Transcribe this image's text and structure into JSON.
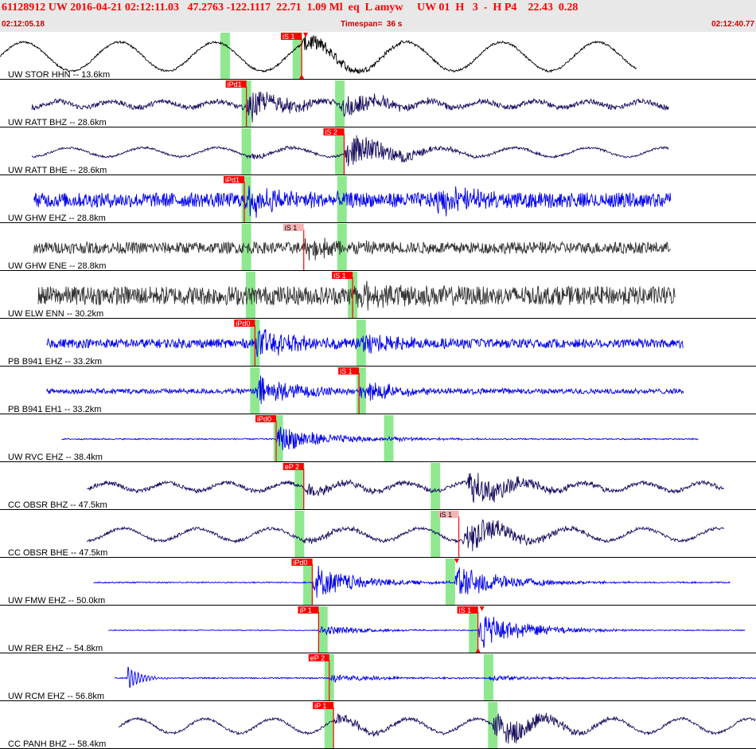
{
  "header": {
    "title": "61128912 UW 2016-04-21 02:12:11.03   47.2763 -122.1117  22.71  1.09 Ml  eq  L amyw     UW 01  H   3  -  H P4    22.43  0.28",
    "start_time": "02:12:05.18",
    "timespan": "Timespan=  36 s",
    "end_time": "02:12:40.77"
  },
  "colors": {
    "header_bg": "#e8e8e8",
    "header_text": "#ff0000",
    "pick_flag": "#ff0000",
    "pick_flag_light": "#f4b4b4",
    "predicted_band": "#8fe88f",
    "trace_blue": "#0000ee",
    "trace_navy": "#1a1060",
    "trace_gray": "#333333",
    "trace_black": "#000000"
  },
  "time_window": {
    "start": 0,
    "end": 35.59
  },
  "channels": [
    {
      "label": "UW STOR HHN -- 13.6km",
      "color": "#000000",
      "data_start": 0.0,
      "data_end": 30.0,
      "noise": 0.05,
      "long_amp": 0.7,
      "long_period": 4.5,
      "event": 14.2,
      "event_amp": 0.5,
      "event2": null,
      "event2_amp": 0,
      "bands": [
        10.6,
        14.0
      ],
      "picks": [
        {
          "label": "iS 1",
          "t": 14.2,
          "light": false,
          "line": true,
          "arrow": true
        }
      ]
    },
    {
      "label": "UW RATT BHZ -- 28.6km",
      "color": "#1a1060",
      "data_start": 1.5,
      "data_end": 31.5,
      "noise": 0.12,
      "long_amp": 0.15,
      "long_period": 2.5,
      "event": 11.6,
      "event_amp": 0.7,
      "event2": 16.0,
      "event2_amp": 0.6,
      "bands": [
        11.6,
        16.0
      ],
      "picks": [
        {
          "label": "iPd1",
          "t": 11.6,
          "light": false,
          "line": true
        }
      ]
    },
    {
      "label": "UW RATT BHE -- 28.6km",
      "color": "#1a1060",
      "data_start": 1.5,
      "data_end": 31.5,
      "noise": 0.05,
      "long_amp": 0.22,
      "long_period": 3.5,
      "event": 11.6,
      "event_amp": 0.15,
      "event2": 16.2,
      "event2_amp": 0.9,
      "bands": [
        11.6,
        16.0
      ],
      "picks": [
        {
          "label": "iS 2",
          "t": 16.2,
          "light": false,
          "line": true
        }
      ]
    },
    {
      "label": "UW GHW EHZ -- 28.8km",
      "color": "#0000ee",
      "data_start": 1.6,
      "data_end": 31.6,
      "noise": 0.35,
      "long_amp": 0.0,
      "long_period": 3.0,
      "event": 11.5,
      "event_amp": 0.7,
      "event2": 20.5,
      "event2_amp": 0.6,
      "bands": [
        11.6,
        16.1
      ],
      "picks": [
        {
          "label": "iPd1",
          "t": 11.5,
          "light": false,
          "line": true
        }
      ]
    },
    {
      "label": "UW GHW ENE -- 28.8km",
      "color": "#333333",
      "data_start": 1.6,
      "data_end": 31.6,
      "noise": 0.28,
      "long_amp": 0.0,
      "long_period": 3.0,
      "event": 14.3,
      "event_amp": 0.5,
      "event2": null,
      "event2_amp": 0,
      "bands": [
        11.6,
        16.1
      ],
      "picks": [
        {
          "label": "iS 1",
          "t": 14.3,
          "light": true,
          "line": true
        }
      ]
    },
    {
      "label": "UW ELW ENN -- 30.2km",
      "color": "#333333",
      "data_start": 1.8,
      "data_end": 31.8,
      "noise": 0.45,
      "long_amp": 0.0,
      "long_period": 3.0,
      "event": 16.6,
      "event_amp": 0.5,
      "event2": null,
      "event2_amp": 0,
      "bands": [
        11.8,
        16.6
      ],
      "picks": [
        {
          "label": "iS 1",
          "t": 16.6,
          "light": false,
          "line": true
        }
      ]
    },
    {
      "label": "PB B941 EHZ -- 33.2km",
      "color": "#0000ee",
      "data_start": 2.2,
      "data_end": 32.2,
      "noise": 0.22,
      "long_amp": 0.0,
      "long_period": 3.0,
      "event": 12.0,
      "event_amp": 0.7,
      "event2": 17.0,
      "event2_amp": 0.4,
      "bands": [
        12.0,
        17.0
      ],
      "picks": [
        {
          "label": "iPd0",
          "t": 12.0,
          "light": false,
          "line": true
        }
      ]
    },
    {
      "label": "PB B941 EH1 -- 33.2km",
      "color": "#0000ee",
      "data_start": 2.2,
      "data_end": 32.2,
      "noise": 0.12,
      "long_amp": 0.0,
      "long_period": 3.0,
      "event": 12.0,
      "event_amp": 0.7,
      "event2": 16.9,
      "event2_amp": 0.5,
      "bands": [
        12.0,
        17.0
      ],
      "picks": [
        {
          "label": "iS 1",
          "t": 16.9,
          "light": false,
          "line": true
        }
      ]
    },
    {
      "label": "UW RVC EHZ -- 38.4km",
      "color": "#0000ee",
      "data_start": 2.9,
      "data_end": 32.9,
      "noise": 0.03,
      "long_amp": 0.0,
      "long_period": 3.0,
      "event": 13.0,
      "event_amp": 0.7,
      "event2": 18.3,
      "event2_amp": 0.1,
      "bands": [
        13.1,
        18.3
      ],
      "picks": [
        {
          "label": "iPd0",
          "t": 13.0,
          "light": false,
          "line": true
        }
      ]
    },
    {
      "label": "CC OBSR BHZ -- 47.5km",
      "color": "#1a1060",
      "data_start": 4.1,
      "data_end": 34.1,
      "noise": 0.1,
      "long_amp": 0.2,
      "long_period": 2.8,
      "event": 14.3,
      "event_amp": 0.3,
      "event2": 22.0,
      "event2_amp": 0.85,
      "bands": [
        14.1,
        20.5
      ],
      "picks": [
        {
          "label": "eP 2",
          "t": 14.3,
          "light": false,
          "line": true
        }
      ]
    },
    {
      "label": "CC OBSR BHE -- 47.5km",
      "color": "#1a1060",
      "data_start": 4.1,
      "data_end": 34.1,
      "noise": 0.07,
      "long_amp": 0.3,
      "long_period": 3.5,
      "event": 14.3,
      "event_amp": 0.2,
      "event2": 21.8,
      "event2_amp": 0.8,
      "bands": [
        14.1,
        20.5
      ],
      "picks": [
        {
          "label": "iS 1",
          "t": 21.6,
          "light": true,
          "line": true
        }
      ]
    },
    {
      "label": "UW FMW EHZ -- 50.0km",
      "color": "#0000ee",
      "data_start": 4.4,
      "data_end": 34.4,
      "noise": 0.03,
      "long_amp": 0.0,
      "long_period": 3.0,
      "event": 14.7,
      "event_amp": 0.8,
      "event2": 21.4,
      "event2_amp": 0.9,
      "bands": [
        14.5,
        21.2
      ],
      "picks": [
        {
          "label": "iPd0",
          "t": 14.7,
          "light": false,
          "line": true,
          "arrow_s": 21.5
        }
      ]
    },
    {
      "label": "UW RER EHZ -- 54.8km",
      "color": "#0000ee",
      "data_start": 5.1,
      "data_end": 35.1,
      "noise": 0.02,
      "long_amp": 0.0,
      "long_period": 3.0,
      "event": 15.0,
      "event_amp": 0.25,
      "event2": 22.5,
      "event2_amp": 0.9,
      "bands": [
        15.2,
        22.3
      ],
      "picks": [
        {
          "label": "iP 1",
          "t": 15.0,
          "light": false,
          "line": true
        },
        {
          "label": "iS 1",
          "t": 22.5,
          "light": false,
          "line": true,
          "arrow": true
        }
      ]
    },
    {
      "label": "UW RCM EHZ -- 56.8km",
      "color": "#0000ee",
      "data_start": 5.4,
      "data_end": 35.6,
      "noise": 0.03,
      "long_amp": 0.0,
      "long_period": 3.0,
      "event": 15.5,
      "event_amp": 0.2,
      "event2": 23.0,
      "event2_amp": 0.15,
      "bands": [
        15.5,
        23.0
      ],
      "picks": [
        {
          "label": "eP 2",
          "t": 15.5,
          "light": false,
          "line": true
        }
      ],
      "early_burst": 6.0
    },
    {
      "label": "CC PANH BHZ -- 58.4km",
      "color": "#1a1060",
      "data_start": 5.6,
      "data_end": 35.6,
      "noise": 0.06,
      "long_amp": 0.35,
      "long_period": 3.2,
      "event": 15.7,
      "event_amp": 0.3,
      "event2": 23.2,
      "event2_amp": 0.8,
      "bands": [
        15.5,
        23.2
      ],
      "picks": [
        {
          "label": "iP 1",
          "t": 15.7,
          "light": false,
          "line": true
        }
      ]
    }
  ]
}
